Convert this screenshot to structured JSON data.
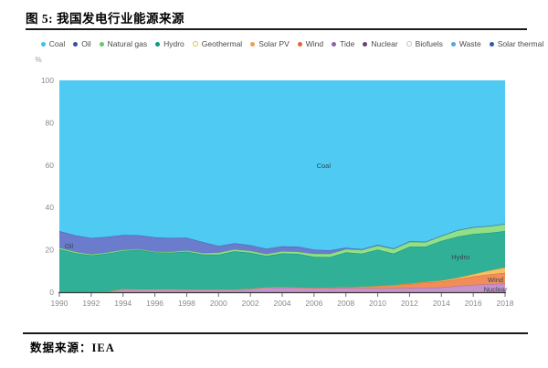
{
  "page": {
    "title": "图 5:  我国发电行业能源来源",
    "source_label": "数据来源：IEA"
  },
  "chart_data": {
    "type": "area",
    "stacked": true,
    "title": "图 5: 我国发电行业能源来源",
    "xlabel": "",
    "ylabel": "%",
    "ylim": [
      0,
      100
    ],
    "y_ticks": [
      0,
      20,
      40,
      60,
      80,
      100
    ],
    "x_ticks": [
      1990,
      1992,
      1994,
      1996,
      1998,
      2000,
      2002,
      2004,
      2006,
      2008,
      2010,
      2012,
      2014,
      2016,
      2018
    ],
    "grid": false,
    "legend_position": "top",
    "legend": [
      {
        "label": "Coal",
        "color": "#3bc2ef",
        "hollow": false
      },
      {
        "label": "Oil",
        "color": "#33519e",
        "hollow": false
      },
      {
        "label": "Natural gas",
        "color": "#5ecb6f",
        "hollow": false
      },
      {
        "label": "Hydro",
        "color": "#0f9a7d",
        "hollow": false
      },
      {
        "label": "Geothermal",
        "color": "#cfc94a",
        "hollow": true
      },
      {
        "label": "Solar PV",
        "color": "#f0a04a",
        "hollow": false
      },
      {
        "label": "Wind",
        "color": "#e0663a",
        "hollow": false
      },
      {
        "label": "Tide",
        "color": "#8f63b0",
        "hollow": false
      },
      {
        "label": "Nuclear",
        "color": "#6d4076",
        "hollow": false
      },
      {
        "label": "Biofuels",
        "color": "#b8c8b8",
        "hollow": true
      },
      {
        "label": "Waste",
        "color": "#57a7e0",
        "hollow": false
      },
      {
        "label": "Solar thermal",
        "color": "#2f5ba0",
        "hollow": false
      }
    ],
    "years": [
      1990,
      1991,
      1992,
      1993,
      1994,
      1995,
      1996,
      1997,
      1998,
      1999,
      2000,
      2001,
      2002,
      2003,
      2004,
      2005,
      2006,
      2007,
      2008,
      2009,
      2010,
      2011,
      2012,
      2013,
      2014,
      2015,
      2016,
      2017,
      2018
    ],
    "stack_order": "bottom-to-top",
    "series": [
      {
        "name": "Nuclear",
        "color": "#c593c9",
        "edge": "#a06cab",
        "values": [
          0,
          0,
          0,
          0.2,
          1.5,
          1.3,
          1.3,
          1.3,
          1.2,
          1.2,
          1.2,
          1.2,
          1.5,
          2.2,
          2.3,
          2.1,
          1.9,
          1.9,
          2.0,
          1.9,
          1.8,
          1.8,
          2.0,
          2.1,
          2.3,
          2.9,
          3.5,
          3.8,
          4.1
        ]
      },
      {
        "name": "Wind",
        "color": "#f28d59",
        "edge": "#d96a33",
        "values": [
          0,
          0,
          0,
          0,
          0,
          0,
          0,
          0.1,
          0.1,
          0.1,
          0.1,
          0.1,
          0.1,
          0.1,
          0.1,
          0.1,
          0.2,
          0.3,
          0.4,
          0.7,
          1.1,
          1.5,
          1.9,
          2.5,
          2.7,
          3.2,
          3.9,
          4.6,
          5.1
        ]
      },
      {
        "name": "Solar PV",
        "color": "#f5c167",
        "edge": "#d99b36",
        "values": [
          0,
          0,
          0,
          0,
          0,
          0,
          0,
          0,
          0,
          0,
          0,
          0,
          0,
          0,
          0,
          0,
          0,
          0,
          0,
          0,
          0,
          0.1,
          0.2,
          0.3,
          0.5,
          0.7,
          1.1,
          1.8,
          2.5
        ]
      },
      {
        "name": "Hydro",
        "color": "#2fb097",
        "edge": "#1d8f7a",
        "values": [
          20.4,
          18.4,
          17.4,
          18.0,
          18.0,
          18.7,
          17.5,
          17.2,
          17.9,
          16.5,
          16.4,
          18.0,
          17.0,
          14.8,
          15.9,
          15.9,
          14.6,
          14.4,
          16.4,
          15.6,
          17.2,
          14.8,
          17.4,
          16.6,
          18.7,
          19.4,
          19.0,
          17.8,
          17.2
        ]
      },
      {
        "name": "Natural gas",
        "color": "#8fe087",
        "edge": "#5fc75f",
        "values": [
          0.6,
          0.6,
          0.5,
          0.5,
          0.5,
          0.4,
          0.4,
          0.5,
          0.5,
          0.6,
          0.9,
          0.9,
          0.9,
          0.9,
          1.0,
          1.0,
          1.4,
          1.5,
          1.5,
          1.7,
          1.9,
          2.2,
          2.2,
          2.1,
          2.3,
          2.9,
          3.0,
          3.1,
          3.2
        ]
      },
      {
        "name": "Oil",
        "color": "#6b7ccd",
        "edge": "#4a5cb3",
        "values": [
          7.9,
          7.8,
          7.7,
          7.4,
          7.0,
          6.5,
          6.7,
          6.5,
          6.0,
          5.3,
          3.2,
          2.9,
          2.7,
          2.5,
          2.4,
          2.4,
          2.0,
          1.7,
          0.7,
          0.4,
          0.4,
          0.3,
          0.3,
          0.2,
          0.2,
          0.2,
          0.2,
          0.2,
          0.2
        ]
      },
      {
        "name": "Coal",
        "color": "#4fcaf3",
        "edge": "",
        "values": [
          71.1,
          73.2,
          74.4,
          73.9,
          73.0,
          73.1,
          74.1,
          74.4,
          74.3,
          76.3,
          78.2,
          76.9,
          77.8,
          79.5,
          78.3,
          78.5,
          79.9,
          80.2,
          79.0,
          79.7,
          77.6,
          79.3,
          76.0,
          76.2,
          73.3,
          70.7,
          69.3,
          68.7,
          67.7
        ]
      }
    ],
    "annotations": [
      {
        "text": "Coal",
        "year": 2006.6,
        "pct": 60.0
      },
      {
        "text": "Oil",
        "year": 1990.6,
        "pct": 22.0
      },
      {
        "text": "Hydro",
        "year": 2015.2,
        "pct": 16.8
      },
      {
        "text": "Wind",
        "year": 2017.4,
        "pct": 6.0
      },
      {
        "text": "Nuclear",
        "year": 2017.4,
        "pct": 1.5
      }
    ]
  }
}
